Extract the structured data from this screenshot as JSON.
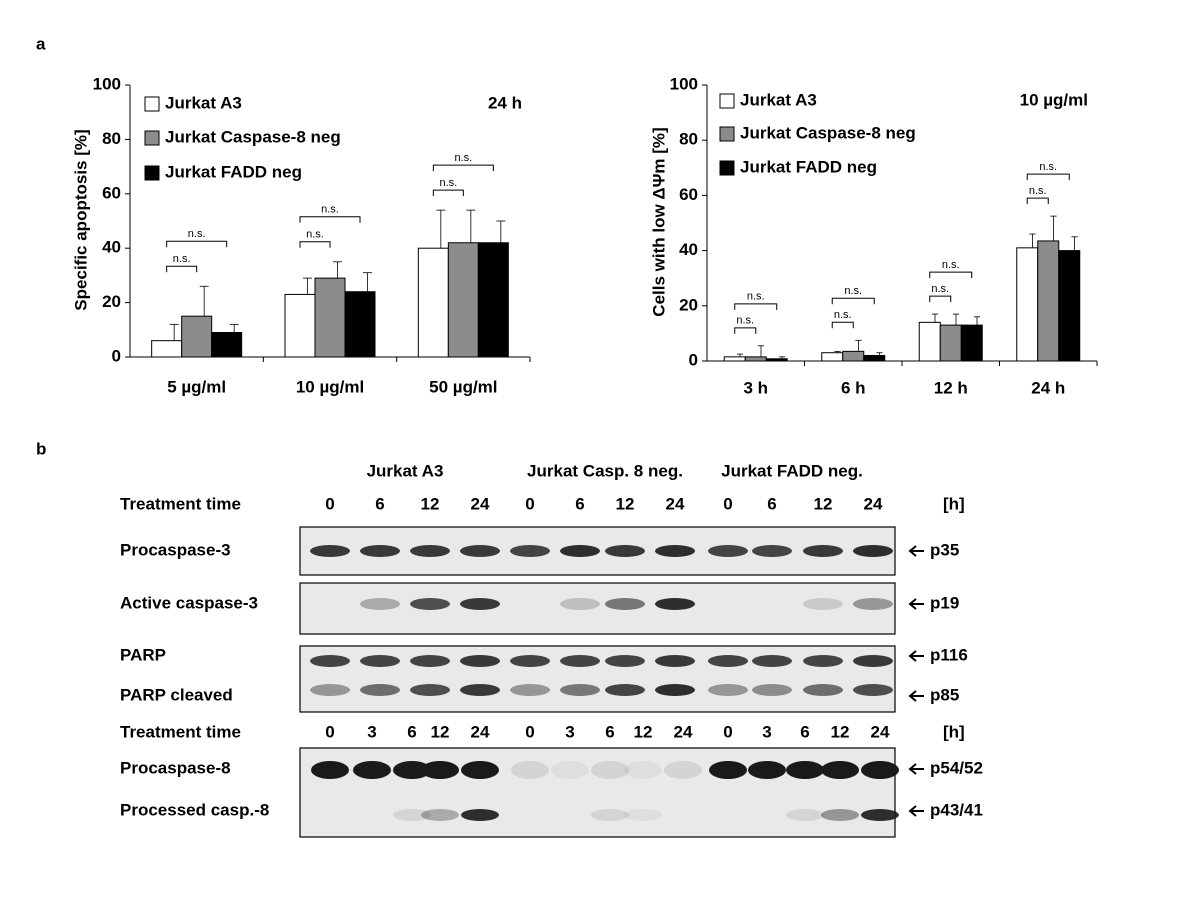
{
  "panel_labels": [
    "a",
    "b"
  ],
  "chart_data": [
    {
      "type": "bar",
      "y_label": "Specific apoptosis [%]",
      "annotation": "24 h",
      "categories": [
        "5 µg/ml",
        "10 µg/ml",
        "50 µg/ml"
      ],
      "series": [
        {
          "name": "Jurkat A3",
          "color": "#ffffff",
          "values": [
            6,
            23,
            40
          ],
          "errors": [
            6,
            6,
            14
          ]
        },
        {
          "name": "Jurkat Caspase-8 neg",
          "color": "#8c8c8c",
          "values": [
            15,
            29,
            42
          ],
          "errors": [
            11,
            6,
            12
          ]
        },
        {
          "name": "Jurkat FADD neg",
          "color": "#000000",
          "values": [
            9,
            24,
            42
          ],
          "errors": [
            3,
            7,
            8
          ]
        }
      ],
      "significance": [
        [
          "n.s.",
          "n.s."
        ],
        [
          "n.s.",
          "n.s."
        ],
        [
          "n.s.",
          "n.s."
        ]
      ],
      "ylim": [
        0,
        100
      ],
      "yticks": [
        0,
        20,
        40,
        60,
        80,
        100
      ]
    },
    {
      "type": "bar",
      "y_label": "Cells with low ΔΨm [%]",
      "annotation": "10 µg/ml",
      "categories": [
        "3 h",
        "6 h",
        "12 h",
        "24 h"
      ],
      "series": [
        {
          "name": "Jurkat A3",
          "color": "#ffffff",
          "values": [
            1.5,
            3,
            14,
            41
          ],
          "errors": [
            1,
            0.5,
            3,
            5
          ]
        },
        {
          "name": "Jurkat Caspase-8 neg",
          "color": "#8c8c8c",
          "values": [
            1.5,
            3.5,
            13,
            43.5
          ],
          "errors": [
            4,
            4,
            4,
            9
          ]
        },
        {
          "name": "Jurkat FADD neg",
          "color": "#000000",
          "values": [
            0.8,
            2,
            13,
            40
          ],
          "errors": [
            0.7,
            1,
            3,
            5
          ]
        }
      ],
      "significance": [
        [
          "n.s.",
          "n.s."
        ],
        [
          "n.s.",
          "n.s."
        ],
        [
          "n.s.",
          "n.s."
        ],
        [
          "n.s.",
          "n.s."
        ]
      ],
      "ylim": [
        0,
        100
      ],
      "yticks": [
        0,
        20,
        40,
        60,
        80,
        100
      ]
    }
  ],
  "blot": {
    "groups": [
      "Jurkat A3",
      "Jurkat Casp. 8 neg.",
      "Jurkat FADD neg."
    ],
    "time_label": "Treatment time",
    "unit": "[h]",
    "times_a": [
      0,
      6,
      12,
      24,
      0,
      6,
      12,
      24,
      0,
      6,
      12,
      24
    ],
    "times_b": [
      0,
      3,
      6,
      12,
      24,
      0,
      3,
      6,
      12,
      24,
      0,
      3,
      6,
      12,
      24
    ],
    "rows": [
      {
        "label": "Procaspase-3",
        "marker": "p35"
      },
      {
        "label": "Active caspase-3",
        "marker": "p19"
      },
      {
        "label": "PARP",
        "marker": "p116"
      },
      {
        "label": "PARP cleaved",
        "marker": "p85"
      },
      {
        "label": "Procaspase-8",
        "marker": "p54/52"
      },
      {
        "label": "Processed casp.-8",
        "marker": "p43/41"
      }
    ]
  }
}
